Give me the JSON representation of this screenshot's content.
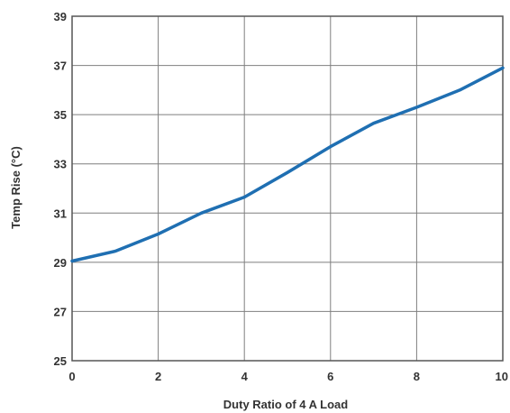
{
  "chart_data": {
    "type": "line",
    "xlabel": "Duty Ratio of 4 A Load",
    "ylabel": "Temp Rise (°C)",
    "xlim": [
      0,
      10
    ],
    "ylim": [
      25,
      39
    ],
    "x_ticks": [
      "0",
      "2",
      "4",
      "6",
      "8",
      "10"
    ],
    "y_ticks": [
      "25",
      "27",
      "29",
      "31",
      "33",
      "35",
      "37",
      "39"
    ],
    "grid": true,
    "legend": "none",
    "series": [
      {
        "color": "#1f6fb2",
        "x": [
          0,
          1,
          2,
          3,
          4,
          5,
          6,
          7,
          8,
          9,
          10
        ],
        "y": [
          29.05,
          29.45,
          30.15,
          31.0,
          31.65,
          32.65,
          33.7,
          34.65,
          35.3,
          36.0,
          36.9
        ]
      }
    ]
  }
}
